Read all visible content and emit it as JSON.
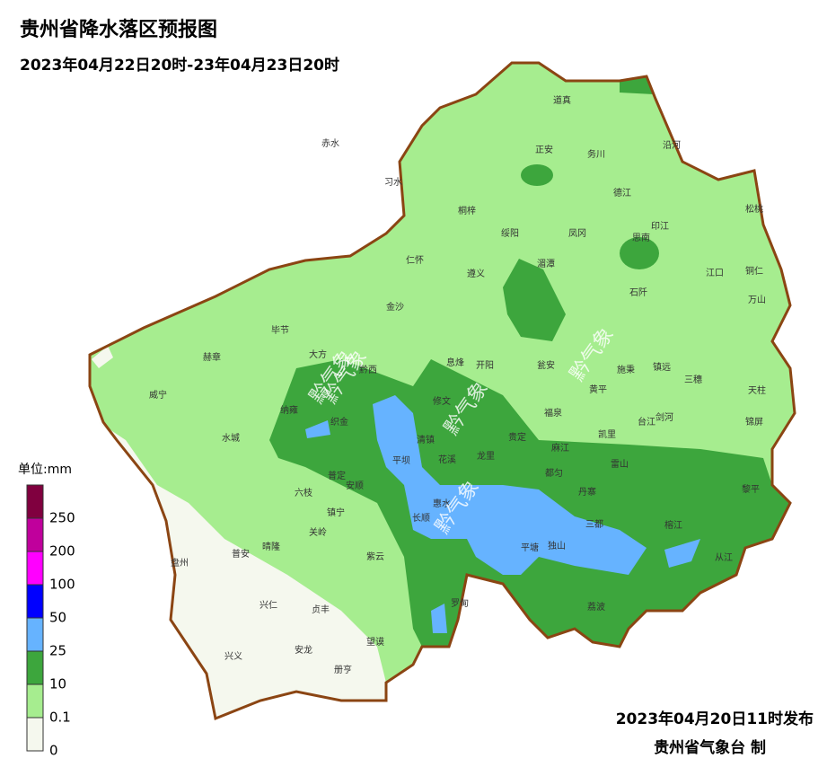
{
  "header": {
    "title": "贵州省降水落区预报图",
    "subtitle": "2023年04月22日20时-23年04月23日20时"
  },
  "legend": {
    "title": "单位:mm",
    "items": [
      {
        "color": "#80003f",
        "label": 250
      },
      {
        "color": "#c0009c",
        "label": 200
      },
      {
        "color": "#ff00ff",
        "label": 100
      },
      {
        "color": "#0000ff",
        "label": 50
      },
      {
        "color": "#66b3ff",
        "label": 25
      },
      {
        "color": "#3da63d",
        "label": 10
      },
      {
        "color": "#a6ed8f",
        "label": 0.1
      },
      {
        "color": "#f5f8ee",
        "label": 0
      }
    ]
  },
  "counties": [
    "道真",
    "赤水",
    "正安",
    "务川",
    "沿河",
    "习水",
    "德江",
    "松桃",
    "桐梓",
    "绥阳",
    "凤冈",
    "印江",
    "思南",
    "仁怀",
    "湄潭",
    "遵义",
    "江口",
    "铜仁",
    "石阡",
    "万山",
    "金沙",
    "毕节",
    "大方",
    "赫章",
    "黔西",
    "息烽",
    "开阳",
    "瓮安",
    "施秉",
    "镇远",
    "威宁",
    "三穗",
    "天柱",
    "修文",
    "黄平",
    "纳雍",
    "织金",
    "福泉",
    "剑河",
    "锦屏",
    "台江",
    "水城",
    "清镇",
    "龙里",
    "贵定",
    "凯里",
    "麻江",
    "平坝",
    "花溪",
    "雷山",
    "都匀",
    "普定",
    "安顺",
    "丹寨",
    "黎平",
    "六枝",
    "惠水",
    "镇宁",
    "长顺",
    "三都",
    "榕江",
    "关岭",
    "晴隆",
    "平塘",
    "独山",
    "普安",
    "紫云",
    "从江",
    "盘州",
    "兴仁",
    "罗甸",
    "荔波",
    "贞丰",
    "望谟",
    "兴义",
    "安龙",
    "册亨"
  ],
  "watermarks": [
    "黔气象",
    "黔气象",
    "黔气象",
    "黔气象",
    "黔气象"
  ],
  "footer": {
    "issued": "2023年04月20日11时发布",
    "issuer": "贵州省气象台 制"
  }
}
